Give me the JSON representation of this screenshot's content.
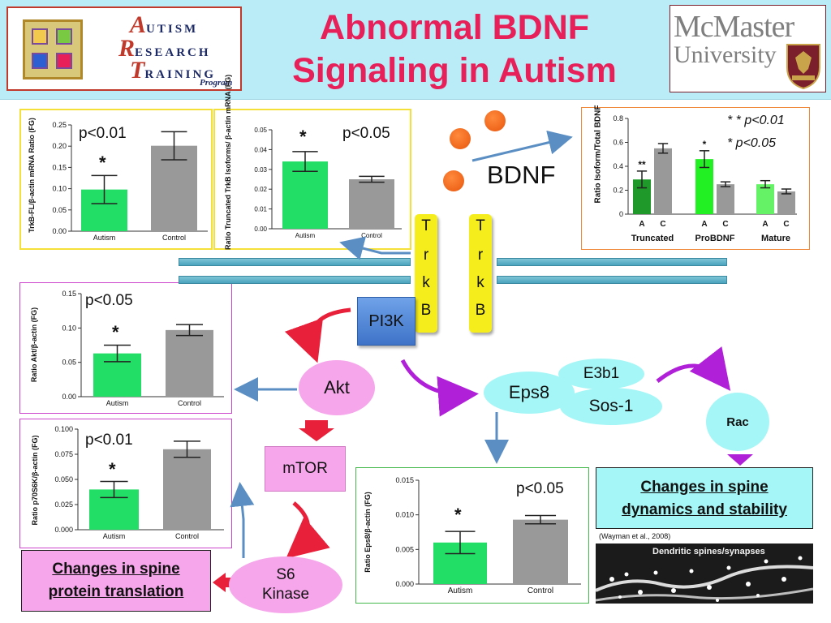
{
  "header": {
    "title_line1": "Abnormal BDNF",
    "title_line2": "Signaling in Autism",
    "art_logo": {
      "word1": "UTISM",
      "word2": "ESEARCH",
      "word3": "RAINING",
      "cap1": "A",
      "cap2": "R",
      "cap3": "T",
      "program": "Program"
    },
    "mcmaster_logo": {
      "line1": "McMaster",
      "line2": "University"
    }
  },
  "colors": {
    "title": "#e8205a",
    "header_bg": "#b9ecf7",
    "autism_bar": "#22dd66",
    "control_bar": "#999999",
    "trkb": "#f6ee1c",
    "bdnf": "#e8560c"
  },
  "bdnf": {
    "label": "BDNF"
  },
  "trkb": {
    "letters": [
      "T",
      "r",
      "k",
      "B"
    ]
  },
  "nodes": {
    "pi3k": "PI3K",
    "akt": "Akt",
    "mtor": "mTOR",
    "s6_line1": "S6",
    "s6_line2": "Kinase",
    "eps8": "Eps8",
    "e3b1": "E3b1",
    "sos1": "Sos-1",
    "rac": "Rac"
  },
  "outcomes": {
    "translation_line1": "Changes in spine",
    "translation_line2": "protein translation",
    "dynamics_line1": "Changes in spine",
    "dynamics_line2": "dynamics and stability",
    "citation": "(Wayman et al., 2008)",
    "micrograph_label": "Dendritic spines/synapses"
  },
  "chart_data": [
    {
      "id": "trkb_fl",
      "type": "bar",
      "ylabel": "TrkB-FL/β-actin mRNA Ratio (FG)",
      "categories": [
        "Autism",
        "Control"
      ],
      "values": [
        0.098,
        0.201
      ],
      "errors": [
        0.033,
        0.033
      ],
      "ylim": [
        0,
        0.25
      ],
      "yticks": [
        "0.00",
        "0.05",
        "0.10",
        "0.15",
        "0.20",
        "0.25"
      ],
      "pvalue": "p<0.01",
      "marker": "*"
    },
    {
      "id": "trkb_truncated",
      "type": "bar",
      "ylabel": "Ratio Truncated TrkB Isoforms/ β-actin mRNA (FG)",
      "categories": [
        "Autism",
        "Control"
      ],
      "values": [
        0.034,
        0.025
      ],
      "errors": [
        0.005,
        0.0015
      ],
      "ylim": [
        0,
        0.05
      ],
      "yticks": [
        "0.00",
        "0.01",
        "0.02",
        "0.03",
        "0.04",
        "0.05"
      ],
      "pvalue": "p<0.05",
      "marker": "*"
    },
    {
      "id": "bdnf_isoforms",
      "type": "bar",
      "ylabel": "Ratio Isoform/Total BDNF",
      "groups": [
        "Truncated",
        "ProBDNF",
        "Mature"
      ],
      "categories": [
        "A",
        "C",
        "A",
        "C",
        "A",
        "C"
      ],
      "values": [
        0.29,
        0.55,
        0.46,
        0.25,
        0.25,
        0.19
      ],
      "errors": [
        0.07,
        0.04,
        0.07,
        0.02,
        0.03,
        0.02
      ],
      "ylim": [
        0,
        0.8
      ],
      "yticks": [
        "0",
        "0.2",
        "0.4",
        "0.6",
        "0.8"
      ],
      "markers": [
        "**",
        "",
        "*",
        "",
        "",
        ""
      ],
      "legend": [
        "* * p<0.01",
        "* p<0.05"
      ]
    },
    {
      "id": "akt",
      "type": "bar",
      "ylabel": "Ratio Akt/β-actin (FG)",
      "categories": [
        "Autism",
        "Control"
      ],
      "values": [
        0.063,
        0.097
      ],
      "errors": [
        0.012,
        0.008
      ],
      "ylim": [
        0,
        0.15
      ],
      "yticks": [
        "0.00",
        "0.05",
        "0.10",
        "0.15"
      ],
      "pvalue": "p<0.05",
      "marker": "*"
    },
    {
      "id": "p70s6k",
      "type": "bar",
      "ylabel": "Ratio p70S6K/β-actin (FG)",
      "categories": [
        "Autism",
        "Control"
      ],
      "values": [
        0.04,
        0.08
      ],
      "errors": [
        0.008,
        0.008
      ],
      "ylim": [
        0,
        0.1
      ],
      "yticks": [
        "0.000",
        "0.025",
        "0.050",
        "0.075",
        "0.100"
      ],
      "pvalue": "p<0.01",
      "marker": "*"
    },
    {
      "id": "eps8",
      "type": "bar",
      "ylabel": "Ratio Eps8/β-actin (FG)",
      "categories": [
        "Autism",
        "Control"
      ],
      "values": [
        0.006,
        0.0093
      ],
      "errors": [
        0.0016,
        0.0006
      ],
      "ylim": [
        0,
        0.015
      ],
      "yticks": [
        "0.000",
        "0.005",
        "0.010",
        "0.015"
      ],
      "pvalue": "p<0.05",
      "marker": "*"
    }
  ]
}
